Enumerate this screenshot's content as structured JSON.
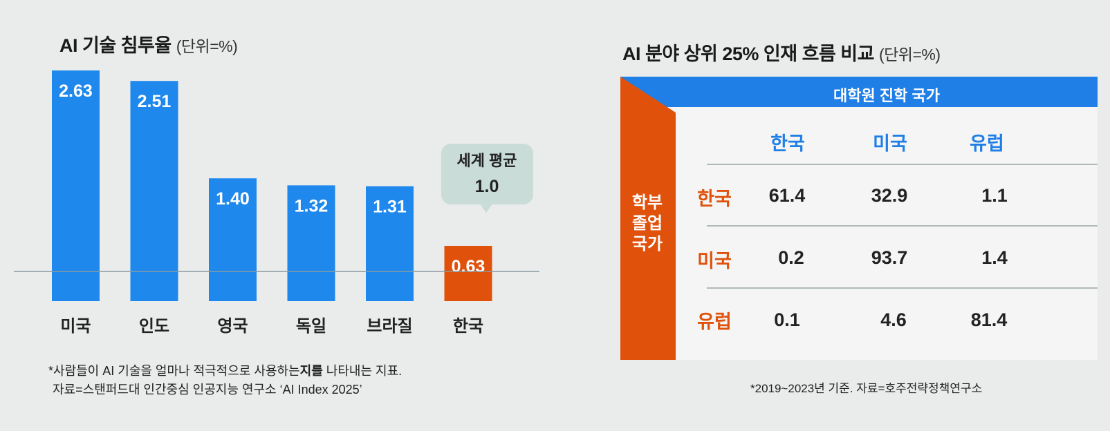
{
  "left": {
    "title": "AI 기술 침투율",
    "unit": "(단위=%)",
    "footnote_line1_prefix": "*사람들이 AI 기술을 얼마나 적극적으로 사용하는",
    "footnote_line1_bold": "지를",
    "footnote_line1_suffix": " 나타내는 지표.",
    "footnote_line2": "자료=스탠퍼드대 인간중심 인공지능 연구소 ‘AI Index 2025’"
  },
  "chart_data": {
    "type": "bar",
    "title": "AI 기술 침투율",
    "unit": "(단위=%)",
    "categories": [
      "미국",
      "인도",
      "영국",
      "독일",
      "브라질",
      "한국"
    ],
    "values": [
      2.63,
      2.51,
      1.4,
      1.32,
      1.31,
      0.63
    ],
    "value_labels": [
      "2.63",
      "2.51",
      "1.40",
      "1.32",
      "1.31",
      "0.63"
    ],
    "highlight": "한국",
    "reference_line": {
      "value": 1.0,
      "label_line1": "세계 평균",
      "label_line2": "1.0"
    },
    "ylim": [
      0,
      2.7
    ],
    "colors": {
      "bar": "#1e88ec",
      "highlight": "#e0520c",
      "ref_line": "#8a9aa0",
      "callout": "#c9dcd8"
    }
  },
  "right": {
    "title": "AI 분야 상위 25% 인재 흐름 비교",
    "unit": "(단위=%)",
    "grad_header": "대학원 진학 국가",
    "undergrad_label": [
      "학부",
      "졸업",
      "국가"
    ],
    "columns": [
      "한국",
      "미국",
      "유럽"
    ],
    "rows": [
      {
        "label": "한국",
        "values": [
          "61.4",
          "32.9",
          "1.1"
        ]
      },
      {
        "label": "미국",
        "values": [
          "0.2",
          "93.7",
          "1.4"
        ]
      },
      {
        "label": "유럽",
        "values": [
          "0.1",
          "4.6",
          "81.4"
        ]
      }
    ],
    "footnote": "*2019~2023년 기준. 자료=호주전략정책연구소",
    "colors": {
      "blue": "#1f7fe6",
      "orange": "#e0520c"
    }
  }
}
